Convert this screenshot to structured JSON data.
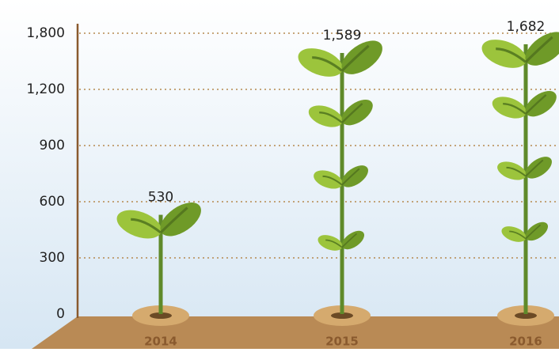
{
  "chart_data": {
    "type": "plant",
    "categories": [
      "2014",
      "2015",
      "2016"
    ],
    "values": [
      530,
      1589,
      1682
    ],
    "value_labels": [
      "530",
      "1,589",
      "1,682"
    ],
    "ylim": [
      0,
      1800
    ],
    "yticks": [
      0,
      300,
      600,
      900,
      {
        "value": 1200,
        "label": "1,200"
      },
      {
        "value": 1800,
        "label": "1,800"
      }
    ],
    "grid": true,
    "color": "#5f8a2a"
  }
}
